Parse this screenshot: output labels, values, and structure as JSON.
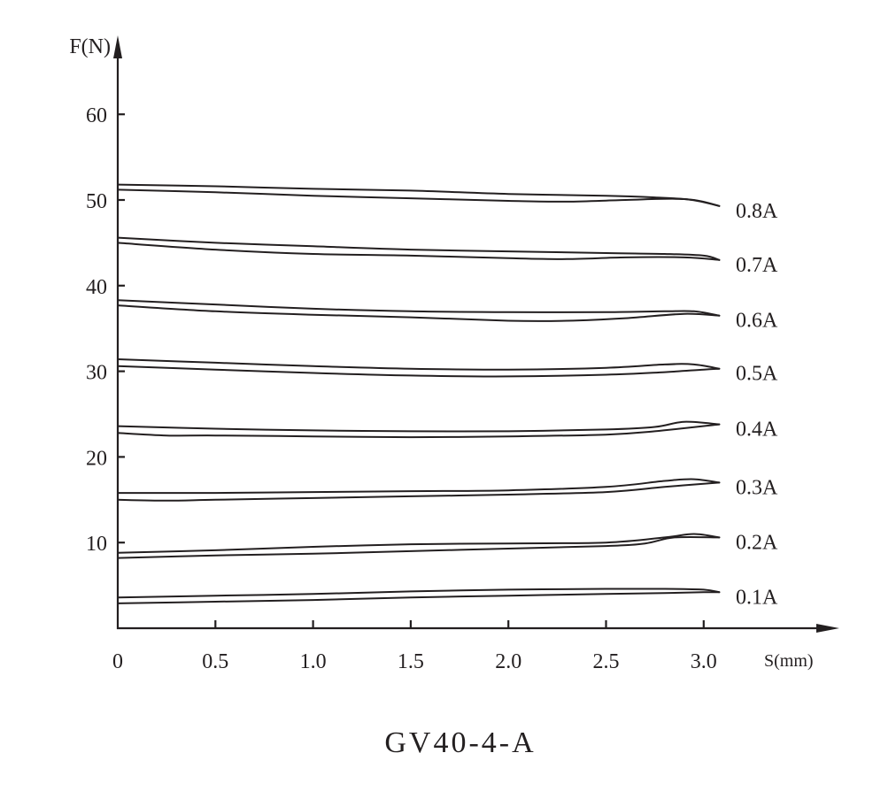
{
  "caption": "GV40-4-A",
  "chart_data": {
    "type": "line",
    "title": "GV40-4-A",
    "xlabel": "S(mm)",
    "ylabel": "F(N)",
    "xlim": [
      0,
      3.3
    ],
    "ylim": [
      0,
      62
    ],
    "xticks": [
      0,
      0.5,
      1.0,
      1.5,
      2.0,
      2.5,
      3.0
    ],
    "xtick_labels": [
      "0",
      "0.5",
      "1.0",
      "1.5",
      "2.0",
      "2.5",
      "3.0"
    ],
    "yticks": [
      10,
      20,
      30,
      40,
      50,
      60
    ],
    "ytick_labels": [
      "10",
      "20",
      "30",
      "40",
      "50",
      "60"
    ],
    "grid": false,
    "legend": "inline labels at right end of each curve pair",
    "notes": "Each current level shows a hysteresis loop: an upper and a lower branch that merge near S≈3.05 mm.",
    "series": [
      {
        "name": "0.1A",
        "upper": {
          "x": [
            0,
            0.5,
            1.0,
            1.5,
            2.0,
            2.5,
            2.8,
            3.0,
            3.08
          ],
          "y": [
            3.6,
            3.8,
            4.0,
            4.3,
            4.5,
            4.6,
            4.6,
            4.5,
            4.2
          ]
        },
        "lower": {
          "x": [
            0,
            0.5,
            1.0,
            1.5,
            2.0,
            2.5,
            2.8,
            3.0,
            3.08
          ],
          "y": [
            2.9,
            3.1,
            3.3,
            3.6,
            3.8,
            4.0,
            4.1,
            4.2,
            4.2
          ]
        }
      },
      {
        "name": "0.2A",
        "upper": {
          "x": [
            0,
            0.5,
            1.0,
            1.5,
            2.0,
            2.5,
            2.8,
            2.95,
            3.08
          ],
          "y": [
            8.8,
            9.1,
            9.5,
            9.8,
            9.9,
            10.0,
            10.6,
            11.0,
            10.6
          ]
        },
        "lower": {
          "x": [
            0,
            0.5,
            1.0,
            1.5,
            2.0,
            2.5,
            2.7,
            2.85,
            3.08
          ],
          "y": [
            8.2,
            8.5,
            8.7,
            9.0,
            9.3,
            9.6,
            9.9,
            10.6,
            10.6
          ]
        }
      },
      {
        "name": "0.3A",
        "upper": {
          "x": [
            0,
            0.5,
            1.0,
            1.5,
            2.0,
            2.5,
            2.8,
            2.95,
            3.08
          ],
          "y": [
            15.8,
            15.8,
            15.9,
            16.0,
            16.1,
            16.5,
            17.2,
            17.4,
            17.0
          ]
        },
        "lower": {
          "x": [
            0,
            0.25,
            0.5,
            1.0,
            1.5,
            2.0,
            2.5,
            2.8,
            3.08
          ],
          "y": [
            15.0,
            14.9,
            15.0,
            15.2,
            15.4,
            15.6,
            15.9,
            16.5,
            17.0
          ]
        }
      },
      {
        "name": "0.4A",
        "upper": {
          "x": [
            0,
            0.5,
            1.0,
            1.5,
            2.0,
            2.5,
            2.75,
            2.9,
            3.08
          ],
          "y": [
            23.6,
            23.3,
            23.1,
            23.0,
            23.0,
            23.2,
            23.5,
            24.1,
            23.8
          ]
        },
        "lower": {
          "x": [
            0,
            0.25,
            0.5,
            1.0,
            1.5,
            2.0,
            2.5,
            2.75,
            3.08
          ],
          "y": [
            22.8,
            22.5,
            22.5,
            22.4,
            22.3,
            22.4,
            22.6,
            23.0,
            23.8
          ]
        }
      },
      {
        "name": "0.5A",
        "upper": {
          "x": [
            0,
            0.5,
            1.0,
            1.5,
            2.0,
            2.5,
            2.8,
            2.95,
            3.08
          ],
          "y": [
            31.4,
            31.0,
            30.6,
            30.3,
            30.2,
            30.4,
            30.8,
            30.8,
            30.3
          ]
        },
        "lower": {
          "x": [
            0,
            0.5,
            1.0,
            1.5,
            2.0,
            2.5,
            2.8,
            3.0,
            3.08
          ],
          "y": [
            30.6,
            30.2,
            29.8,
            29.5,
            29.4,
            29.6,
            29.9,
            30.2,
            30.3
          ]
        }
      },
      {
        "name": "0.6A",
        "upper": {
          "x": [
            0,
            0.5,
            1.0,
            1.5,
            2.0,
            2.5,
            2.8,
            2.95,
            3.08
          ],
          "y": [
            38.3,
            37.8,
            37.3,
            37.0,
            36.9,
            36.9,
            37.0,
            37.0,
            36.5
          ]
        },
        "lower": {
          "x": [
            0,
            0.5,
            1.0,
            1.5,
            2.0,
            2.3,
            2.6,
            2.9,
            3.08
          ],
          "y": [
            37.7,
            37.0,
            36.6,
            36.3,
            35.9,
            35.9,
            36.2,
            36.7,
            36.5
          ]
        }
      },
      {
        "name": "0.7A",
        "upper": {
          "x": [
            0,
            0.5,
            1.0,
            1.5,
            2.0,
            2.5,
            2.8,
            3.0,
            3.08
          ],
          "y": [
            45.6,
            45.0,
            44.6,
            44.2,
            44.0,
            43.8,
            43.7,
            43.5,
            43.0
          ]
        },
        "lower": {
          "x": [
            0,
            0.5,
            1.0,
            1.5,
            2.0,
            2.3,
            2.6,
            2.9,
            3.08
          ],
          "y": [
            45.0,
            44.2,
            43.7,
            43.5,
            43.2,
            43.1,
            43.3,
            43.3,
            43.0
          ]
        }
      },
      {
        "name": "0.8A",
        "upper": {
          "x": [
            0,
            0.5,
            1.0,
            1.5,
            2.0,
            2.5,
            2.75,
            2.95,
            3.08
          ],
          "y": [
            51.8,
            51.6,
            51.3,
            51.1,
            50.7,
            50.5,
            50.3,
            50.0,
            49.3
          ]
        },
        "lower": {
          "x": [
            0,
            0.5,
            1.0,
            1.5,
            2.0,
            2.3,
            2.6,
            2.9,
            3.08
          ],
          "y": [
            51.2,
            50.9,
            50.5,
            50.2,
            49.9,
            49.8,
            50.0,
            50.1,
            49.3
          ]
        }
      }
    ]
  }
}
